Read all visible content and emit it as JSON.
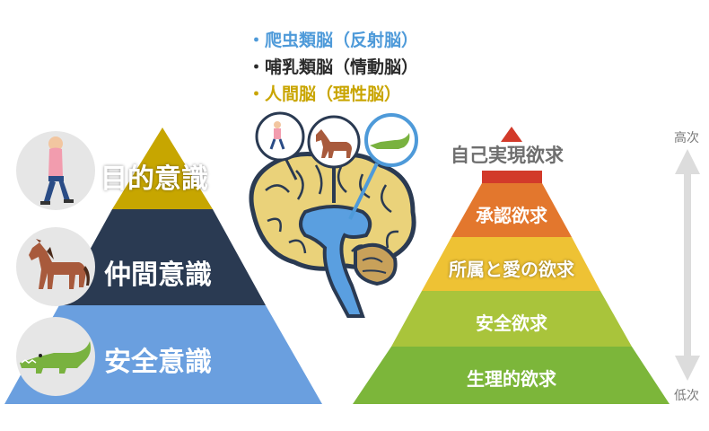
{
  "brain_legend": {
    "reptile": "・爬虫類脳（反射脳）",
    "mammal": "・哺乳類脳（情動脳）",
    "human": "・人間脳（理性脳）"
  },
  "left_pyramid": {
    "levels": [
      {
        "label": "目的意識",
        "color": "#c7a600"
      },
      {
        "label": "仲間意識",
        "color": "#2a3a52"
      },
      {
        "label": "安全意識",
        "color": "#6a9fdf"
      }
    ],
    "icons": [
      "person-walking-icon",
      "horse-icon",
      "crocodile-icon"
    ]
  },
  "right_pyramid": {
    "levels": [
      {
        "label": "自己実現欲求",
        "color": "#d23a2a"
      },
      {
        "label": "承認欲求",
        "color": "#e3772d"
      },
      {
        "label": "所属と愛の欲求",
        "color": "#eec234"
      },
      {
        "label": "安全欲求",
        "color": "#a9c43b"
      },
      {
        "label": "生理的欲求",
        "color": "#7cb63a"
      }
    ],
    "scale_top": "高次",
    "scale_bottom": "低次"
  },
  "colors": {
    "reptile": "#4e9ad9",
    "mammal": "#2b2b2b",
    "human": "#c9a500",
    "brain": "#ead27a",
    "brain_outline": "#2a3a52"
  }
}
